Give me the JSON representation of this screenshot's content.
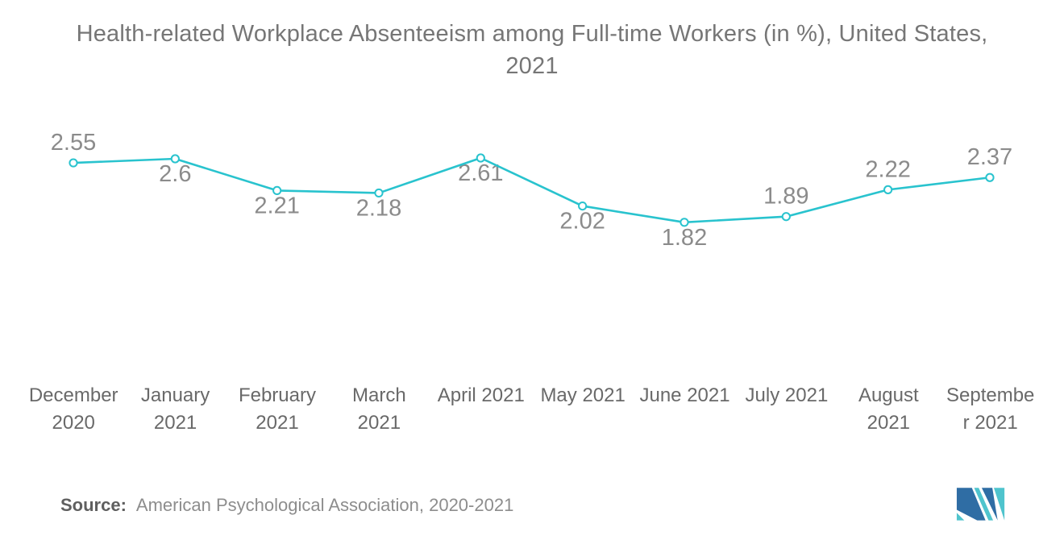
{
  "title": "Health-related Workplace Absenteeism among Full-time Workers (in %), United States,\n2021",
  "chart_data": {
    "type": "line",
    "title": "Health-related Workplace Absenteeism among Full-time Workers (in %), United States, 2021",
    "categories": [
      "December\n2020",
      "January\n2021",
      "February\n2021",
      "March\n2021",
      "April 2021",
      "May 2021",
      "June 2021",
      "July 2021",
      "August\n2021",
      "Septembe\nr 2021"
    ],
    "values": [
      2.55,
      2.6,
      2.21,
      2.18,
      2.61,
      2.02,
      1.82,
      1.89,
      2.22,
      2.37
    ],
    "value_labels": [
      "2.55",
      "2.6",
      "2.21",
      "2.18",
      "2.61",
      "2.02",
      "1.82",
      "1.89",
      "2.22",
      "2.37"
    ],
    "value_label_positions": [
      "above",
      "below",
      "below",
      "below",
      "below",
      "below",
      "below",
      "above",
      "above",
      "above"
    ],
    "xlabel": "",
    "ylabel": "",
    "grid": false,
    "legend": false,
    "y_axis_visible": false,
    "line_color": "#29c3ce",
    "marker_style": "open-circle",
    "marker_fill": "#ffffff",
    "value_label_color": "#8b8b8b"
  },
  "footer": {
    "source_label": "Source:",
    "source_text": "American Psychological Association, 2020-2021"
  },
  "logo": {
    "name": "mordor-intelligence-logo",
    "color_blue": "#2f6da4",
    "color_teal": "#4fc4cd"
  }
}
